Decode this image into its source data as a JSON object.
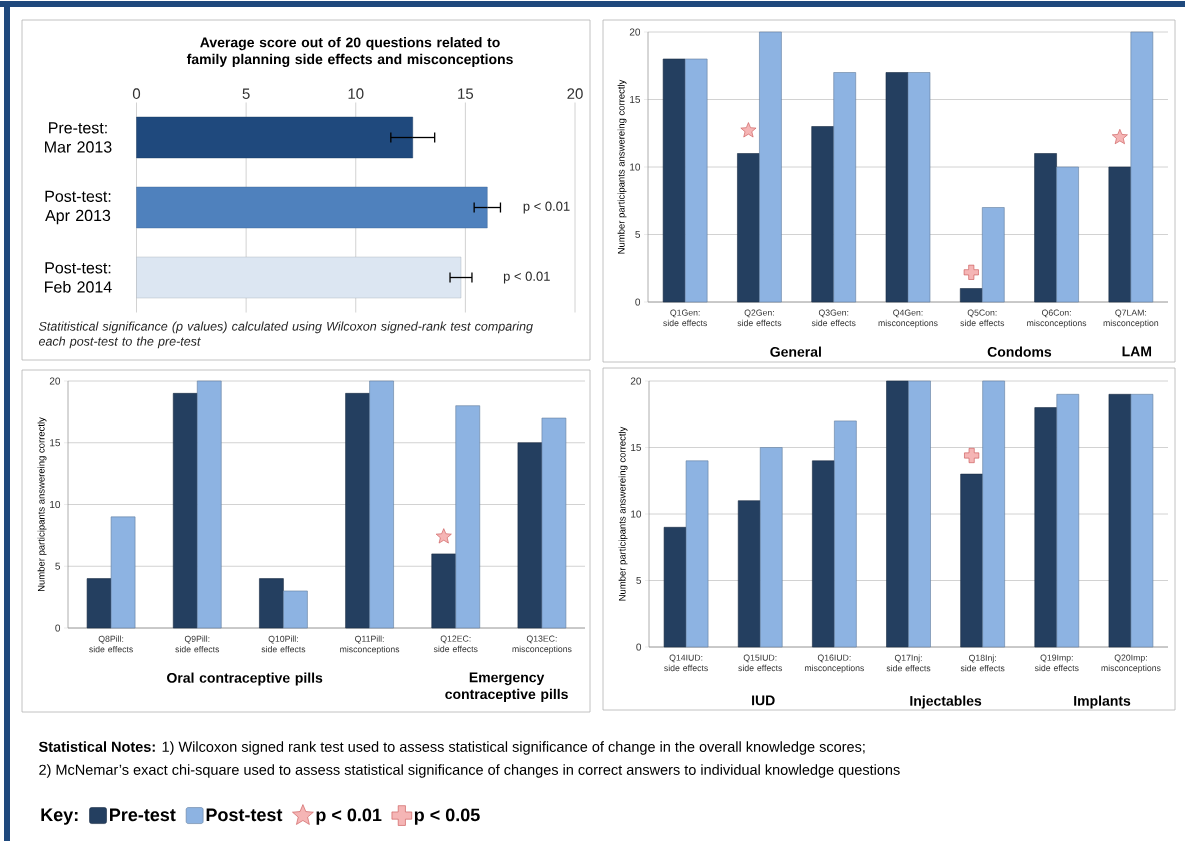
{
  "chart_data": [
    {
      "type": "bar",
      "orientation": "horizontal",
      "title": "Average score out of 20 questions related to family planning side effects and misconceptions",
      "categories": [
        "Pre-test: Mar 2013",
        "Post-test: Apr 2013",
        "Post-test: Feb 2014"
      ],
      "values": [
        12.6,
        16.0,
        14.8
      ],
      "colors": [
        "#1f497d",
        "#4f81bd",
        "#dce6f2"
      ],
      "errors": [
        1.0,
        0.6,
        0.5
      ],
      "xlim": [
        0,
        20
      ],
      "xticks": [
        0,
        5,
        10,
        15,
        20
      ],
      "grid": "x",
      "annotations": [
        "p < 0.01",
        "p < 0.01",
        "Statitistical significance (p values) calculated using Wilcoxon signed-rank test comparing each post-test to the pre-test"
      ]
    },
    {
      "type": "bar",
      "ylabel": "Number participants answereing correctly",
      "categories": [
        "Q1Gen: side effects",
        "Q2Gen: side effects",
        "Q3Gen: side effects",
        "Q4Gen: misconceptions",
        "Q5Con: side effects",
        "Q6Con: misconceptions",
        "Q7LAM: misconception"
      ],
      "ylim": [
        0,
        20
      ],
      "yticks": [
        0,
        5,
        10,
        15,
        20
      ],
      "grid": "y",
      "legend": "bottom",
      "legend_title": "Key:",
      "series": [
        {
          "name": "Pre-test",
          "color": "#243f60",
          "values": [
            18,
            11,
            13,
            17,
            1,
            11,
            10
          ]
        },
        {
          "name": "Post-test",
          "color": "#8db3e2",
          "values": [
            18,
            20,
            17,
            17,
            7,
            10,
            20
          ]
        },
        {
          "name": "p < 0.01",
          "type": "scatter",
          "marker": "star",
          "color": "#f5b5b5",
          "x": [
            "Q2Gen: side effects",
            "Q7LAM: misconception"
          ],
          "values": [
            12.7,
            12.2
          ]
        },
        {
          "name": "p < 0.05",
          "type": "scatter",
          "marker": "cross",
          "color": "#f5b5b5",
          "x": [
            "Q5Con: side effects"
          ],
          "values": [
            2.2
          ]
        }
      ],
      "annotations": [
        "General",
        "Condoms",
        "LAM"
      ]
    },
    {
      "type": "bar",
      "ylabel": "Number participants answereing correctly",
      "categories": [
        "Q8Pill: side effects",
        "Q9Pill: side effects",
        "Q10Pill: side effects",
        "Q11Pill: misconceptions",
        "Q12EC: side effects",
        "Q13EC: misconceptions"
      ],
      "ylim": [
        0,
        20
      ],
      "yticks": [
        0,
        5,
        10,
        15,
        20
      ],
      "grid": "y",
      "series": [
        {
          "color": "#243f60",
          "values": [
            4,
            19,
            4,
            19,
            6,
            15
          ]
        },
        {
          "color": "#8db3e2",
          "values": [
            9,
            20,
            3,
            20,
            18,
            17
          ]
        },
        {
          "type": "scatter",
          "marker": "star",
          "color": "#f5b5b5",
          "x": [
            "Q12EC: side effects"
          ],
          "values": [
            7.4
          ]
        }
      ],
      "annotations": [
        "Oral contraceptive pills",
        "Emergency contraceptive pills"
      ]
    },
    {
      "type": "bar",
      "ylabel": "Number participants answereing correctly",
      "categories": [
        "Q14IUD: side effects",
        "Q15IUD: side effects",
        "Q16IUD: misconceptions",
        "Q17Inj: side effects",
        "Q18Inj: side effects",
        "Q19Imp: side effects",
        "Q20Imp: misconceptions"
      ],
      "ylim": [
        0,
        20
      ],
      "yticks": [
        0,
        5,
        10,
        15,
        20
      ],
      "grid": "y",
      "series": [
        {
          "color": "#243f60",
          "values": [
            9,
            11,
            14,
            20,
            13,
            18,
            19
          ]
        },
        {
          "color": "#8db3e2",
          "values": [
            14,
            15,
            17,
            20,
            20,
            19,
            19
          ]
        },
        {
          "type": "scatter",
          "marker": "cross",
          "color": "#f5b5b5",
          "x": [
            "Q18Inj: side effects"
          ],
          "values": [
            14.4
          ]
        }
      ],
      "annotations": [
        "IUD",
        "Injectables",
        "Implants",
        "**Statistical Notes:** 1) Wilcoxon signed rank test used to assess statistical significance of change in the overall knowledge scores;",
        "2) McNemar’s exact chi-square used to assess statistical significance of changes in correct answers to individual knowledge questions"
      ]
    }
  ]
}
